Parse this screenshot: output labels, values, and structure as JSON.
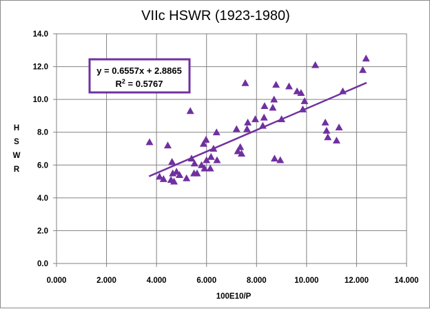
{
  "chart_data": {
    "type": "scatter",
    "title": "VIIc HSWR (1923-1980)",
    "xlabel": "100E10/P",
    "ylabel": "HSWR",
    "xlim": [
      0,
      14
    ],
    "ylim": [
      0,
      14
    ],
    "x_ticks": [
      "0.000",
      "2.000",
      "4.000",
      "6.000",
      "8.000",
      "10.000",
      "12.000",
      "14.000"
    ],
    "y_ticks": [
      "0.0",
      "2.0",
      "4.0",
      "6.0",
      "8.0",
      "10.0",
      "12.0",
      "14.0"
    ],
    "grid": true,
    "marker_color": "#7030a0",
    "trendline": {
      "slope": 0.6557,
      "intercept": 2.8865,
      "x_range": [
        3.7,
        12.4
      ],
      "color": "#7030a0",
      "equation_label": "y = 0.6557x + 2.8865",
      "r2_label": "R",
      "r2_sup": "2",
      "r2_value": " = 0.5767"
    },
    "points": [
      [
        3.72,
        7.4
      ],
      [
        4.12,
        5.3
      ],
      [
        4.28,
        5.15
      ],
      [
        4.45,
        7.2
      ],
      [
        4.58,
        5.1
      ],
      [
        4.62,
        6.2
      ],
      [
        4.65,
        5.5
      ],
      [
        4.7,
        5.0
      ],
      [
        4.8,
        5.6
      ],
      [
        4.92,
        5.4
      ],
      [
        5.2,
        5.2
      ],
      [
        5.35,
        9.3
      ],
      [
        5.4,
        6.4
      ],
      [
        5.5,
        5.5
      ],
      [
        5.52,
        6.1
      ],
      [
        5.62,
        5.5
      ],
      [
        5.8,
        6.0
      ],
      [
        5.88,
        7.3
      ],
      [
        5.92,
        5.8
      ],
      [
        5.98,
        7.55
      ],
      [
        6.0,
        6.3
      ],
      [
        6.15,
        5.8
      ],
      [
        6.18,
        6.5
      ],
      [
        6.28,
        7.0
      ],
      [
        6.4,
        8.0
      ],
      [
        6.42,
        6.3
      ],
      [
        7.2,
        8.2
      ],
      [
        7.25,
        6.85
      ],
      [
        7.35,
        7.1
      ],
      [
        7.4,
        6.7
      ],
      [
        7.55,
        11.0
      ],
      [
        7.62,
        8.2
      ],
      [
        7.65,
        8.6
      ],
      [
        7.95,
        8.8
      ],
      [
        8.25,
        8.4
      ],
      [
        8.3,
        8.9
      ],
      [
        8.32,
        9.6
      ],
      [
        8.65,
        9.5
      ],
      [
        8.7,
        10.0
      ],
      [
        8.72,
        6.4
      ],
      [
        8.78,
        10.9
      ],
      [
        8.95,
        6.3
      ],
      [
        9.0,
        8.8
      ],
      [
        9.3,
        10.8
      ],
      [
        9.62,
        10.5
      ],
      [
        9.78,
        10.4
      ],
      [
        9.85,
        9.4
      ],
      [
        9.92,
        9.9
      ],
      [
        10.35,
        12.1
      ],
      [
        10.75,
        8.6
      ],
      [
        10.8,
        8.1
      ],
      [
        10.85,
        7.7
      ],
      [
        11.2,
        7.5
      ],
      [
        11.3,
        8.3
      ],
      [
        11.45,
        10.5
      ],
      [
        12.25,
        11.8
      ],
      [
        12.38,
        12.5
      ]
    ]
  }
}
